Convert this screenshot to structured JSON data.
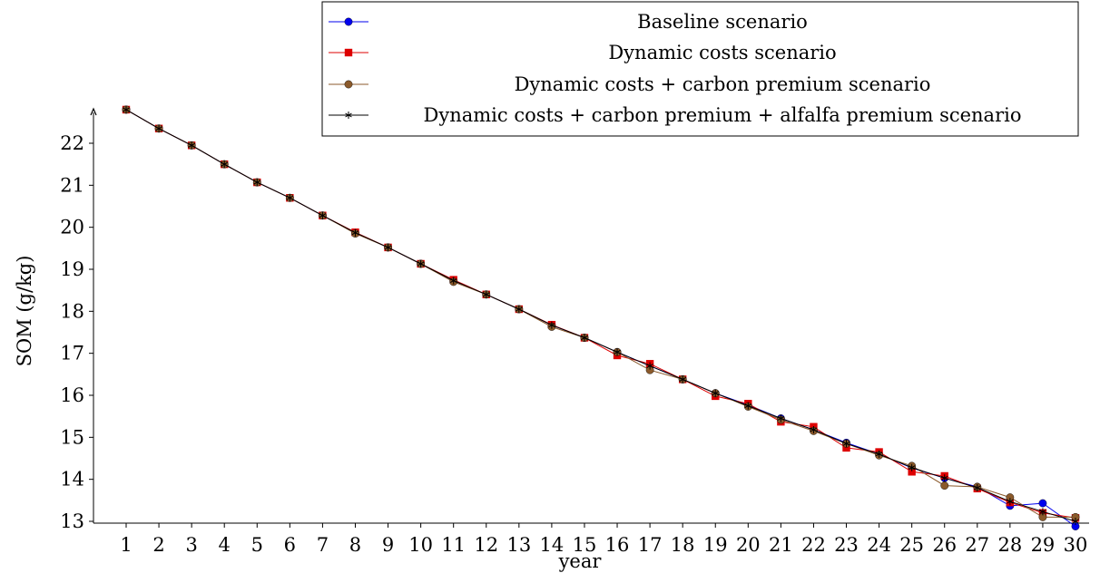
{
  "chart_data": {
    "type": "line",
    "title": "",
    "xlabel": "year",
    "ylabel": "SOM (g/kg)",
    "xlim": [
      0.5,
      30.5
    ],
    "ylim": [
      12.9,
      22.8
    ],
    "grid": false,
    "legend_position": "top-right",
    "x": [
      1,
      2,
      3,
      4,
      5,
      6,
      7,
      8,
      9,
      10,
      11,
      12,
      13,
      14,
      15,
      16,
      17,
      18,
      19,
      20,
      21,
      22,
      23,
      24,
      25,
      26,
      27,
      28,
      29,
      30
    ],
    "x_ticks": [
      "1",
      "2",
      "3",
      "4",
      "5",
      "6",
      "7",
      "8",
      "9",
      "10",
      "11",
      "12",
      "13",
      "14",
      "15",
      "16",
      "17",
      "18",
      "19",
      "20",
      "21",
      "22",
      "23",
      "24",
      "25",
      "26",
      "27",
      "28",
      "29",
      "30"
    ],
    "y_ticks": [
      "13",
      "14",
      "15",
      "16",
      "17",
      "18",
      "19",
      "20",
      "21",
      "22"
    ],
    "series": [
      {
        "name": "Baseline scenario",
        "color": "#0000ee",
        "marker": "circle",
        "values": [
          22.8,
          22.35,
          21.95,
          21.5,
          21.07,
          20.7,
          20.28,
          19.87,
          19.52,
          19.13,
          18.73,
          18.4,
          18.05,
          17.67,
          17.37,
          17.03,
          16.7,
          16.38,
          16.05,
          15.77,
          15.45,
          15.18,
          14.87,
          14.6,
          14.27,
          14.03,
          13.82,
          13.37,
          13.43,
          12.88
        ]
      },
      {
        "name": "Dynamic costs scenario",
        "color": "#dd0000",
        "marker": "square",
        "values": [
          22.8,
          22.35,
          21.95,
          21.5,
          21.07,
          20.7,
          20.28,
          19.88,
          19.52,
          19.13,
          18.75,
          18.4,
          18.05,
          17.68,
          17.37,
          16.95,
          16.75,
          16.38,
          15.98,
          15.8,
          15.37,
          15.25,
          14.75,
          14.65,
          14.18,
          14.08,
          13.78,
          13.45,
          13.2,
          13.08
        ]
      },
      {
        "name": "Dynamic costs + carbon premium scenario",
        "color": "#8b5a2b",
        "marker": "circle",
        "values": [
          22.8,
          22.35,
          21.95,
          21.5,
          21.07,
          20.7,
          20.28,
          19.85,
          19.52,
          19.13,
          18.7,
          18.4,
          18.05,
          17.63,
          17.37,
          17.03,
          16.6,
          16.38,
          16.05,
          15.73,
          15.42,
          15.15,
          14.85,
          14.57,
          14.32,
          13.85,
          13.82,
          13.57,
          13.1,
          13.1
        ]
      },
      {
        "name": "Dynamic costs + carbon premium + alfalfa premium scenario",
        "color": "#000000",
        "marker": "star",
        "values": [
          22.8,
          22.35,
          21.95,
          21.5,
          21.07,
          20.7,
          20.28,
          19.87,
          19.52,
          19.13,
          18.73,
          18.4,
          18.05,
          17.67,
          17.37,
          17.03,
          16.7,
          16.38,
          16.05,
          15.75,
          15.45,
          15.18,
          14.85,
          14.6,
          14.28,
          14.03,
          13.8,
          13.47,
          13.23,
          13.0
        ]
      }
    ]
  }
}
